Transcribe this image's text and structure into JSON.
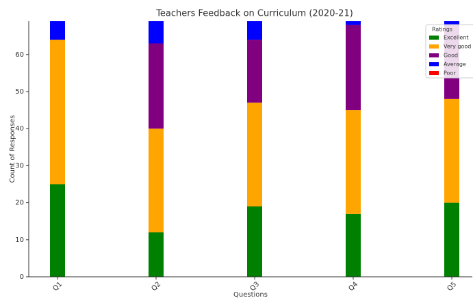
{
  "chart_data": {
    "type": "stacked_bar",
    "title": "Teachers Feedback on Curriculum (2020-21)",
    "x_label": "Questions",
    "y_label": "Count of Responses",
    "categories": [
      "Q1",
      "Q2",
      "Q3",
      "Q4",
      "Q5"
    ],
    "legend_title": "Ratings",
    "legend": "upper right",
    "series": [
      {
        "name": "Excellent",
        "color": "#008000",
        "values": [
          25,
          12,
          19,
          17,
          20
        ]
      },
      {
        "name": "Very good",
        "color": "#ffa500",
        "values": [
          39,
          28,
          28,
          28,
          28
        ]
      },
      {
        "name": "Good",
        "color": "#800080",
        "values": [
          0,
          23,
          17,
          23,
          20
        ]
      },
      {
        "name": "Average",
        "color": "#0000ff",
        "values": [
          5,
          6,
          5,
          1,
          1
        ]
      },
      {
        "name": "Poor",
        "color": "#ff0000",
        "values": [
          0,
          0,
          0,
          0,
          0
        ]
      }
    ],
    "ylim": [
      0,
      69
    ],
    "yticks": [
      0,
      10,
      20,
      30,
      40,
      50,
      60
    ]
  }
}
